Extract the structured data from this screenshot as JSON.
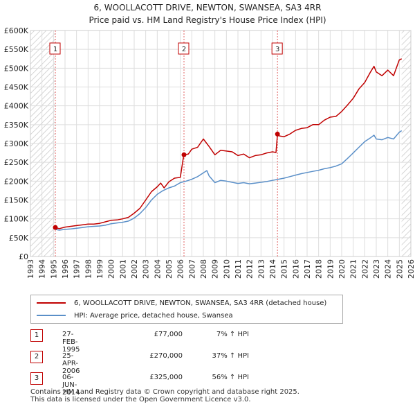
{
  "header": {
    "title_line1": "6, WOOLLACOTT DRIVE, NEWTON, SWANSEA, SA3 4RR",
    "title_line2": "Price paid vs. HM Land Registry's House Price Index (HPI)"
  },
  "chart_data": {
    "type": "line",
    "title": "6, WOOLLACOTT DRIVE, NEWTON, SWANSEA, SA3 4RR — Price paid vs. HM Land Registry's House Price Index (HPI)",
    "xlabel": "",
    "ylabel": "",
    "xlim": [
      1993,
      2026
    ],
    "ylim": [
      0,
      600000
    ],
    "x_ticks": [
      1993,
      1994,
      1995,
      1996,
      1997,
      1998,
      1999,
      2000,
      2001,
      2002,
      2003,
      2004,
      2005,
      2006,
      2007,
      2008,
      2009,
      2010,
      2011,
      2012,
      2013,
      2014,
      2015,
      2016,
      2017,
      2018,
      2019,
      2020,
      2021,
      2022,
      2023,
      2024,
      2025,
      2026
    ],
    "y_ticks": [
      {
        "value": 0,
        "label": "£0"
      },
      {
        "value": 50000,
        "label": "£50K"
      },
      {
        "value": 100000,
        "label": "£100K"
      },
      {
        "value": 150000,
        "label": "£150K"
      },
      {
        "value": 200000,
        "label": "£200K"
      },
      {
        "value": 250000,
        "label": "£250K"
      },
      {
        "value": 300000,
        "label": "£300K"
      },
      {
        "value": 350000,
        "label": "£350K"
      },
      {
        "value": 400000,
        "label": "£400K"
      },
      {
        "value": 450000,
        "label": "£450K"
      },
      {
        "value": 500000,
        "label": "£500K"
      },
      {
        "value": 550000,
        "label": "£550K"
      },
      {
        "value": 600000,
        "label": "£600K"
      }
    ],
    "grid": true,
    "hatched_regions": [
      [
        1993,
        1995.15
      ],
      [
        2025.2,
        2026
      ]
    ],
    "series": [
      {
        "name": "6, WOOLLACOTT DRIVE, NEWTON, SWANSEA, SA3 4RR (detached house)",
        "color": "#c00000",
        "x": [
          1995.15,
          1995.5,
          1996,
          1996.5,
          1997,
          1997.5,
          1998,
          1998.5,
          1999,
          1999.5,
          2000,
          2000.5,
          2001,
          2001.5,
          2002,
          2002.5,
          2003,
          2003.5,
          2004,
          2004.3,
          2004.6,
          2005,
          2005.5,
          2006.0,
          2006.3,
          2006.7,
          2007,
          2007.5,
          2008,
          2008.3,
          2008.5,
          2009,
          2009.5,
          2010,
          2010.5,
          2011,
          2011.5,
          2012,
          2012.5,
          2013,
          2013.5,
          2014,
          2014.3,
          2014.43,
          2014.6,
          2015,
          2015.5,
          2016,
          2016.5,
          2017,
          2017.5,
          2018,
          2018.5,
          2019,
          2019.5,
          2020,
          2020.5,
          2021,
          2021.5,
          2022,
          2022.5,
          2022.8,
          2023,
          2023.5,
          2024,
          2024.5,
          2025,
          2025.2
        ],
        "values": [
          77000,
          74000,
          78000,
          80000,
          82000,
          84000,
          86000,
          86000,
          88000,
          92000,
          96000,
          97000,
          100000,
          104000,
          115000,
          128000,
          150000,
          172000,
          185000,
          195000,
          182000,
          198000,
          208000,
          210000,
          270000,
          272000,
          285000,
          290000,
          312000,
          300000,
          292000,
          270000,
          282000,
          280000,
          278000,
          268000,
          272000,
          262000,
          268000,
          270000,
          275000,
          278000,
          276000,
          325000,
          320000,
          318000,
          325000,
          335000,
          340000,
          342000,
          350000,
          350000,
          362000,
          370000,
          372000,
          385000,
          402000,
          420000,
          445000,
          462000,
          490000,
          505000,
          490000,
          480000,
          495000,
          480000,
          522000,
          525000
        ]
      },
      {
        "name": "HPI: Average price, detached house, Swansea",
        "color": "#5a8fc8",
        "x": [
          1995.15,
          1995.5,
          1996,
          1996.5,
          1997,
          1997.5,
          1998,
          1998.5,
          1999,
          1999.5,
          2000,
          2000.5,
          2001,
          2001.5,
          2002,
          2002.5,
          2003,
          2003.5,
          2004,
          2004.5,
          2005,
          2005.5,
          2006,
          2006.5,
          2007,
          2007.5,
          2008,
          2008.3,
          2008.5,
          2009,
          2009.5,
          2010,
          2010.5,
          2011,
          2011.5,
          2012,
          2012.5,
          2013,
          2013.5,
          2014,
          2014.5,
          2015,
          2015.5,
          2016,
          2016.5,
          2017,
          2017.5,
          2018,
          2018.5,
          2019,
          2019.5,
          2020,
          2020.5,
          2021,
          2021.5,
          2022,
          2022.5,
          2022.8,
          2023,
          2023.5,
          2024,
          2024.5,
          2025,
          2025.2
        ],
        "values": [
          72000,
          70000,
          72000,
          73000,
          75000,
          77000,
          79000,
          80000,
          81000,
          83000,
          87000,
          89000,
          91000,
          94000,
          102000,
          114000,
          130000,
          150000,
          165000,
          175000,
          182000,
          187000,
          196000,
          200000,
          205000,
          212000,
          222000,
          228000,
          214000,
          196000,
          202000,
          200000,
          197000,
          194000,
          196000,
          193000,
          195000,
          197000,
          199000,
          202000,
          205000,
          208000,
          212000,
          216000,
          220000,
          223000,
          226000,
          229000,
          233000,
          236000,
          240000,
          246000,
          260000,
          275000,
          290000,
          305000,
          315000,
          322000,
          312000,
          310000,
          316000,
          312000,
          330000,
          334000
        ]
      }
    ],
    "transactions": [
      {
        "label": "1",
        "date": "27-FEB-1995",
        "x": 1995.16,
        "price_value": 77000,
        "price": "£77,000",
        "hpi": "7% ↑ HPI"
      },
      {
        "label": "2",
        "date": "25-APR-2006",
        "x": 2006.32,
        "price_value": 270000,
        "price": "£270,000",
        "hpi": "37% ↑ HPI"
      },
      {
        "label": "3",
        "date": "06-JUN-2014",
        "x": 2014.43,
        "price_value": 325000,
        "price": "£325,000",
        "hpi": "56% ↑ HPI"
      }
    ]
  },
  "legend": {
    "property_label": "6, WOOLLACOTT DRIVE, NEWTON, SWANSEA, SA3 4RR (detached house)",
    "hpi_label": "HPI: Average price, detached house, Swansea"
  },
  "footer": {
    "line1": "Contains HM Land Registry data © Crown copyright and database right 2025.",
    "line2": "This data is licensed under the Open Government Licence v3.0."
  },
  "colors": {
    "property": "#c00000",
    "hpi": "#5a8fc8",
    "grid": "#dddddd",
    "marker_line": "#e06060"
  }
}
